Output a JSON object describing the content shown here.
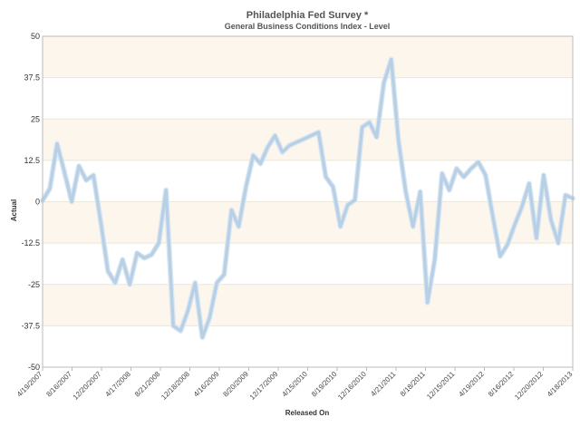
{
  "chart_data": {
    "type": "line",
    "title": "Philadelphia Fed Survey *",
    "subtitle": "General Business Conditions Index - Level",
    "xlabel": "Released On",
    "ylabel": "Actual",
    "ylim": [
      -50,
      50
    ],
    "y_ticks": [
      "50",
      "37.5",
      "25",
      "12.5",
      "0",
      "-12.5",
      "-25",
      "-37.5",
      "-50"
    ],
    "x_tick_labels": [
      "4/19/2007",
      "8/16/2007",
      "12/20/2007",
      "4/17/2008",
      "8/21/2008",
      "12/18/2008",
      "4/16/2009",
      "8/20/2009",
      "12/17/2009",
      "4/15/2010",
      "8/19/2010",
      "12/16/2010",
      "4/21/2011",
      "8/18/2011",
      "12/15/2011",
      "4/19/2012",
      "8/16/2012",
      "12/20/2012",
      "4/18/2013"
    ],
    "grid": "horizontal bands",
    "band_colors": [
      "#fdf6ec",
      "#ffffff"
    ],
    "line_color": "#b8d0e6",
    "series": [
      {
        "values": [
          0.3,
          4.0,
          17.5,
          9.0,
          0.0,
          10.8,
          6.5,
          8.0,
          -6.0,
          -21.0,
          -24.5,
          -17.5,
          -25.0,
          -15.5,
          -17.0,
          -16.0,
          -12.5,
          3.5,
          -37.5,
          -39.0,
          -33.0,
          -24.5,
          -41.0,
          -35.0,
          -24.5,
          -22.0,
          -2.5,
          -7.5,
          4.5,
          14.0,
          11.5,
          16.5,
          20.0,
          15.0,
          17.0,
          18.0,
          19.0,
          20.0,
          21.0,
          7.5,
          4.5,
          -7.5,
          -1.0,
          0.5,
          22.5,
          24.0,
          19.5,
          36.0,
          43.0,
          18.5,
          3.0,
          -7.5,
          3.0,
          -30.5,
          -17.5,
          8.5,
          3.5,
          10.0,
          7.5,
          10.0,
          12.0,
          8.0,
          -4.5,
          -16.5,
          -13.0,
          -7.0,
          -1.5,
          5.5,
          -11.0,
          8.0,
          -5.5,
          -12.5,
          2.0,
          1.0
        ]
      }
    ]
  }
}
